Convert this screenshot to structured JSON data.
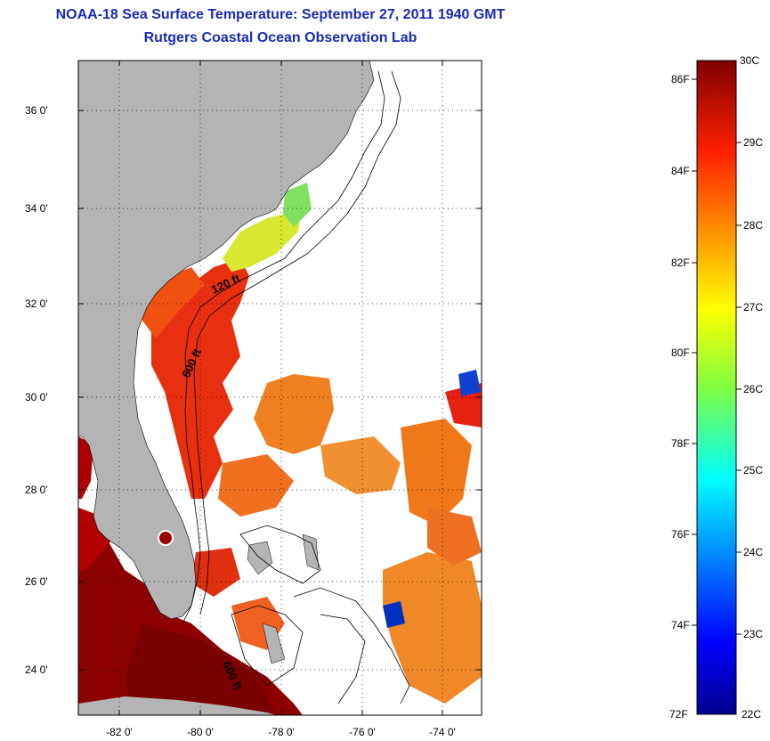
{
  "header": {
    "title": "NOAA-18 Sea Surface Temperature:  September 27, 2011 1940 GMT",
    "subtitle": "Rutgers Coastal Ocean Observation Lab"
  },
  "map": {
    "lat_labels": [
      "36 0'",
      "34 0'",
      "32 0'",
      "30 0'",
      "28 0'",
      "26 0'",
      "24 0'"
    ],
    "lon_labels": [
      "-82 0'",
      "-80 0'",
      "-78 0'",
      "-76 0'",
      "-74 0'"
    ],
    "isobath_labels": [
      "120 ft",
      "600 ft",
      "600 ft"
    ],
    "lat_range": [
      23.0,
      37.0
    ],
    "lon_range": [
      -83.0,
      -73.0
    ]
  },
  "colorbar": {
    "celsius_labels": [
      "30C",
      "29C",
      "28C",
      "27C",
      "26C",
      "25C",
      "24C",
      "23C",
      "22C"
    ],
    "fahrenheit_labels": [
      "86F",
      "84F",
      "82F",
      "80F",
      "78F",
      "76F",
      "74F",
      "72F"
    ],
    "range_c": [
      22,
      30
    ],
    "range_f": [
      72,
      86
    ]
  },
  "colors": {
    "title": "#1a2ab8",
    "land": "#b4b4b4",
    "no_data": "#ffffff",
    "warm_max": "#800000",
    "cool_min": "#00008f"
  }
}
